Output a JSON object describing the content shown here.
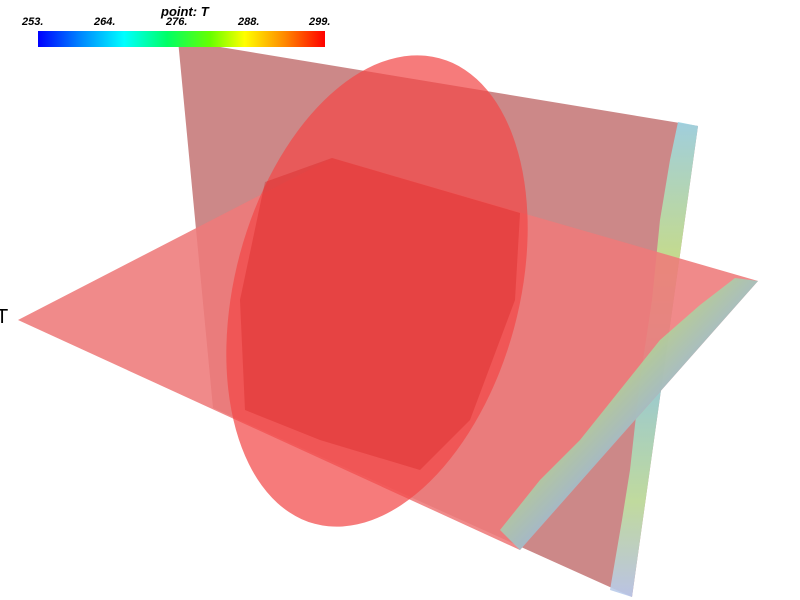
{
  "colorbar": {
    "title": "point: T",
    "ticks": [
      "253.",
      "264.",
      "276.",
      "288.",
      "299."
    ],
    "range": [
      253,
      299
    ],
    "colors": [
      "#0000ff",
      "#00ffff",
      "#00ff00",
      "#ffff00",
      "#ff0000"
    ]
  },
  "axis_label": "T",
  "surface_colors": {
    "vertical_plane": "#c98282",
    "horizontal_plane": "#ee7a7a",
    "ellipse": "#f24848",
    "overlap": "#d42020"
  }
}
